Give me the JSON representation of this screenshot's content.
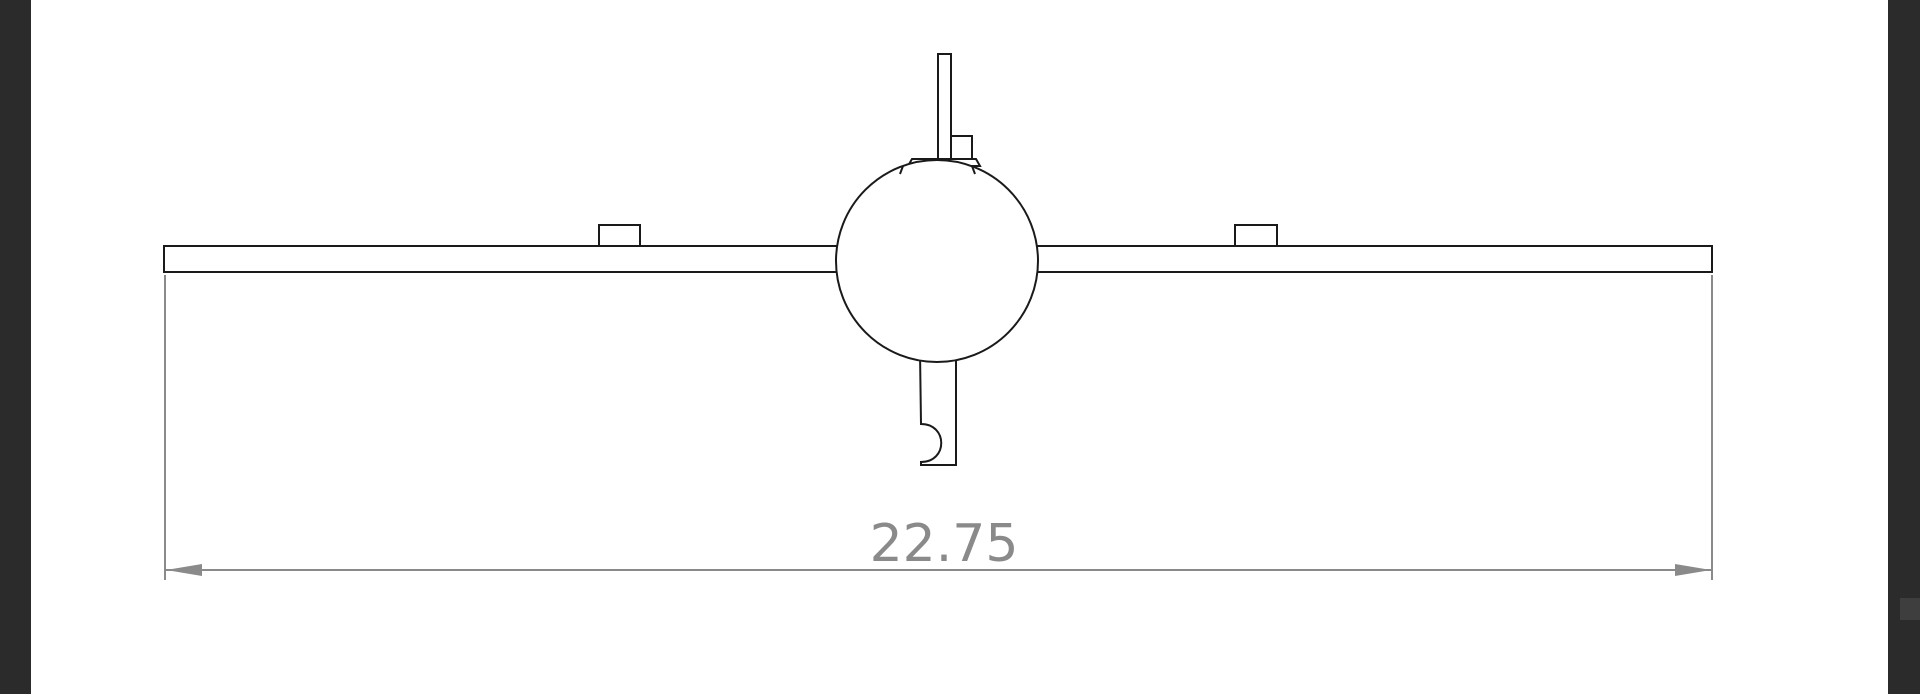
{
  "drawing": {
    "view": "front-view",
    "dimension_value": "22.75"
  },
  "colors": {
    "background_dark": "#2b2b2b",
    "sheet": "#ffffff",
    "geometry_line": "#1a1a1a",
    "dimension_line": "#8a8a8a"
  }
}
